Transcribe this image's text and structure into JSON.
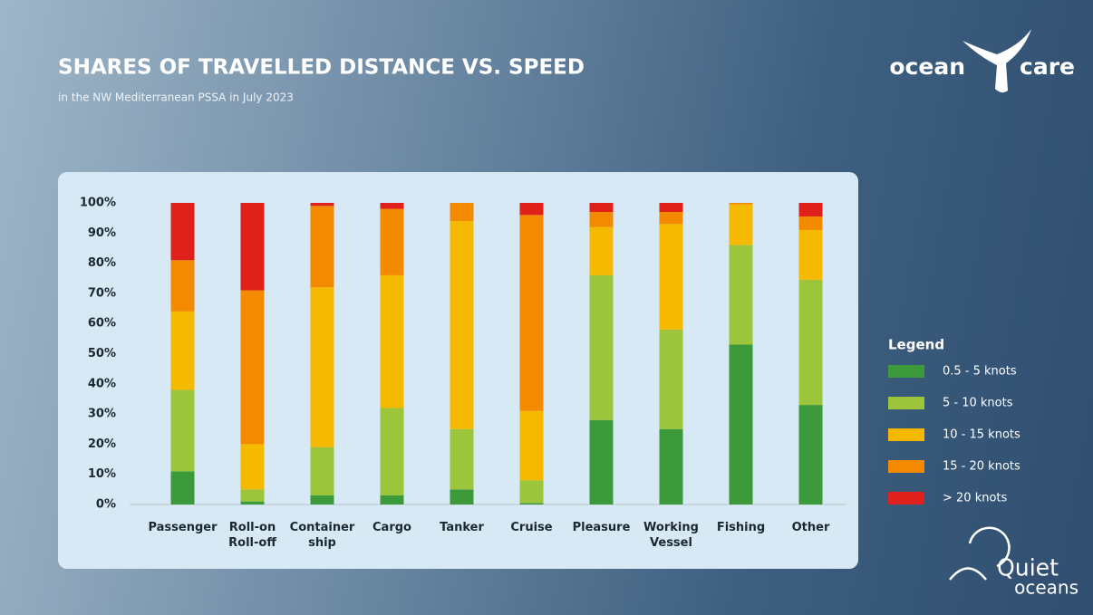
{
  "chart_data": {
    "type": "stacked_bar",
    "title": "SHARES OF TRAVELLED DISTANCE VS. SPEED",
    "subtitle": "in the NW Mediterranean PSSA in July 2023",
    "categories": [
      "Passenger",
      "Roll-on\nRoll-off",
      "Container\nship",
      "Cargo",
      "Tanker",
      "Cruise",
      "Pleasure",
      "Working\nVessel",
      "Fishing",
      "Other"
    ],
    "series": [
      {
        "name": "0.5 - 5 knots",
        "color": "#3d9a3a",
        "values": [
          11,
          1,
          3,
          3,
          5,
          0.5,
          28,
          25,
          53,
          33
        ]
      },
      {
        "name": "5 - 10 knots",
        "color": "#9dc53b",
        "values": [
          27,
          4,
          16,
          29,
          20,
          7.5,
          48,
          33,
          33,
          41.5
        ]
      },
      {
        "name": "10 - 15 knots",
        "color": "#f5b900",
        "values": [
          26,
          15,
          53,
          44,
          69,
          23,
          16,
          35,
          13.5,
          16.5
        ]
      },
      {
        "name": "15 - 20 knots",
        "color": "#f38a00",
        "values": [
          17,
          51,
          27,
          22,
          6,
          65,
          5,
          4,
          0.5,
          4.5
        ]
      },
      {
        "name": "> 20 knots",
        "color": "#e0201b",
        "values": [
          19,
          29,
          1,
          2,
          0,
          4,
          3,
          3,
          0,
          4.5
        ]
      }
    ],
    "ylim": [
      0,
      100
    ],
    "yticks": [
      {
        "value": 0,
        "label": "0%"
      },
      {
        "value": 10,
        "label": "10%"
      },
      {
        "value": 20,
        "label": "20%"
      },
      {
        "value": 30,
        "label": "30%"
      },
      {
        "value": 40,
        "label": "40%"
      },
      {
        "value": 50,
        "label": "50%"
      },
      {
        "value": 60,
        "label": "60%"
      },
      {
        "value": 70,
        "label": "70%"
      },
      {
        "value": 80,
        "label": "80%"
      },
      {
        "value": 90,
        "label": "90%"
      },
      {
        "value": 100,
        "label": "100%"
      }
    ],
    "grid": false,
    "legend_title": "Legend",
    "legend_position": "right"
  },
  "branding": {
    "ocean_care": [
      "ocean",
      "care"
    ],
    "quiet_oceans": [
      "Quiet",
      "oceans"
    ]
  }
}
